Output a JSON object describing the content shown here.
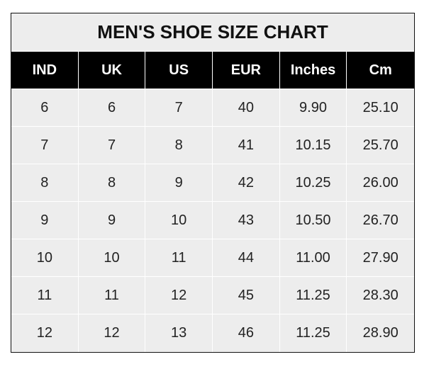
{
  "title": "MEN'S SHOE SIZE CHART",
  "headers": [
    "IND",
    "UK",
    "US",
    "EUR",
    "Inches",
    "Cm"
  ],
  "rows": [
    [
      "6",
      "6",
      "7",
      "40",
      "9.90",
      "25.10"
    ],
    [
      "7",
      "7",
      "8",
      "41",
      "10.15",
      "25.70"
    ],
    [
      "8",
      "8",
      "9",
      "42",
      "10.25",
      "26.00"
    ],
    [
      "9",
      "9",
      "10",
      "43",
      "10.50",
      "26.70"
    ],
    [
      "10",
      "10",
      "11",
      "44",
      "11.00",
      "27.90"
    ],
    [
      "11",
      "11",
      "12",
      "45",
      "11.25",
      "28.30"
    ],
    [
      "12",
      "12",
      "13",
      "46",
      "11.25",
      "28.90"
    ]
  ]
}
